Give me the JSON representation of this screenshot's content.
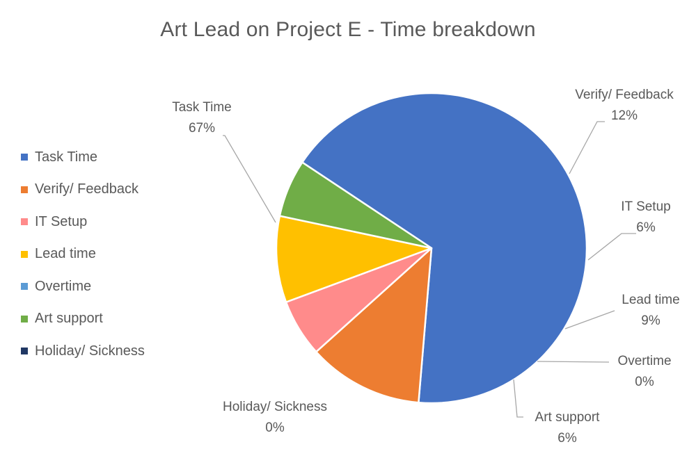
{
  "chart_data": {
    "type": "pie",
    "title": "Art Lead on Project E - Time breakdown",
    "legend_position": "left",
    "slices": [
      {
        "name": "Task Time",
        "percent_label": "67%",
        "value": 67,
        "color": "#4472C4"
      },
      {
        "name": "Verify/ Feedback",
        "percent_label": "12%",
        "value": 12,
        "color": "#ED7D31"
      },
      {
        "name": "IT Setup",
        "percent_label": "6%",
        "value": 6,
        "color": "#FF8B8B"
      },
      {
        "name": "Lead time",
        "percent_label": "9%",
        "value": 9,
        "color": "#FFC000"
      },
      {
        "name": "Overtime",
        "percent_label": "0%",
        "value": 0,
        "color": "#5B9BD5"
      },
      {
        "name": "Art support",
        "percent_label": "6%",
        "value": 6,
        "color": "#70AD47"
      },
      {
        "name": "Holiday/ Sickness",
        "percent_label": "0%",
        "value": 0,
        "color": "#203864"
      }
    ]
  }
}
